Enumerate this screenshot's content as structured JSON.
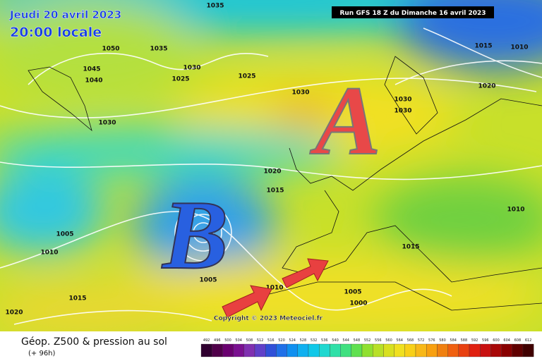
{
  "header": {
    "date": "Jeudi 20 avril 2023",
    "time": "20:00 locale",
    "run": "Run GFS 18 Z du Dimanche 16 avril 2023"
  },
  "map": {
    "high_label": "A",
    "low_label": "B",
    "copyright": "Copyright © 2023 Meteociel.fr",
    "isobar_labels": [
      "1035",
      "1050",
      "1035",
      "1045",
      "1040",
      "1030",
      "1025",
      "1025",
      "1030",
      "1030",
      "1030",
      "1030",
      "1015",
      "1010",
      "1020",
      "1020",
      "1015",
      "1010",
      "1005",
      "1010",
      "1015",
      "1005",
      "1010",
      "1005",
      "1000",
      "1015",
      "1020"
    ]
  },
  "footer": {
    "title": "Géop. Z500 & pression au sol",
    "subtitle": "(+ 96h)",
    "scale": [
      492,
      496,
      500,
      504,
      508,
      512,
      516,
      520,
      524,
      528,
      532,
      536,
      540,
      544,
      548,
      552,
      556,
      560,
      564,
      568,
      572,
      576,
      580,
      584,
      588,
      592,
      596,
      600,
      604,
      608,
      612
    ]
  }
}
